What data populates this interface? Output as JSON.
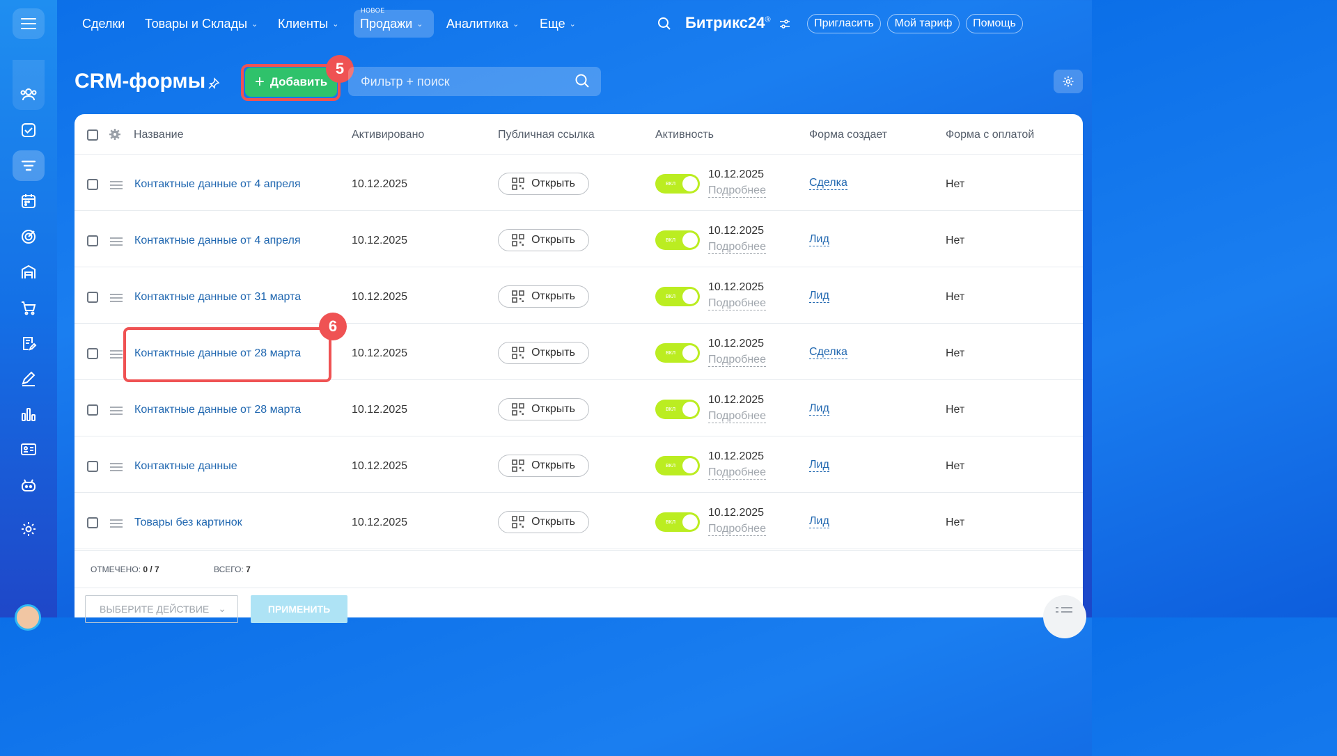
{
  "topnav": {
    "items": [
      {
        "label": "Сделки",
        "chevron": false
      },
      {
        "label": "Товары и Склады",
        "chevron": true
      },
      {
        "label": "Клиенты",
        "chevron": true
      },
      {
        "label": "Продажи",
        "chevron": true,
        "active": true,
        "badge": "НОВОЕ"
      },
      {
        "label": "Аналитика",
        "chevron": true
      },
      {
        "label": "Еще",
        "chevron": true
      }
    ],
    "brand": "Битрикс24",
    "brand_mark": "®",
    "invite": "Пригласить",
    "tariff": "Мой тариф",
    "help": "Помощь"
  },
  "header": {
    "title": "CRM-формы",
    "add_button": "Добавить",
    "filter_placeholder": "Фильтр + поиск"
  },
  "annotations": {
    "add_badge": "5",
    "row_badge": "6"
  },
  "table": {
    "columns": [
      "Название",
      "Активировано",
      "Публичная ссылка",
      "Активность",
      "Форма создает",
      "Форма с оплатой"
    ],
    "open_label": "Открыть",
    "toggle_label": "вкл",
    "more_label": "Подробнее",
    "rows": [
      {
        "name": "Контактные данные от 4 апреля",
        "activated": "10.12.2025",
        "activity_date": "10.12.2025",
        "creates": "Сделка",
        "payment": "Нет"
      },
      {
        "name": "Контактные данные от 4 апреля",
        "activated": "10.12.2025",
        "activity_date": "10.12.2025",
        "creates": "Лид",
        "payment": "Нет"
      },
      {
        "name": "Контактные данные от 31 марта",
        "activated": "10.12.2025",
        "activity_date": "10.12.2025",
        "creates": "Лид",
        "payment": "Нет"
      },
      {
        "name": "Контактные данные от 28 марта",
        "activated": "10.12.2025",
        "activity_date": "10.12.2025",
        "creates": "Сделка",
        "payment": "Нет"
      },
      {
        "name": "Контактные данные от 28 марта",
        "activated": "10.12.2025",
        "activity_date": "10.12.2025",
        "creates": "Лид",
        "payment": "Нет"
      },
      {
        "name": "Контактные данные",
        "activated": "10.12.2025",
        "activity_date": "10.12.2025",
        "creates": "Лид",
        "payment": "Нет"
      },
      {
        "name": "Товары без картинок",
        "activated": "10.12.2025",
        "activity_date": "10.12.2025",
        "creates": "Лид",
        "payment": "Нет"
      }
    ]
  },
  "footer": {
    "selected_label": "ОТМЕЧЕНО:",
    "selected_value": "0 / 7",
    "total_label": "ВСЕГО:",
    "total_value": "7",
    "action_select": "ВЫБЕРИТЕ ДЕЙСТВИЕ",
    "apply": "ПРИМЕНИТЬ"
  },
  "sidebar_icons": [
    "menu-icon",
    "contacts-icon",
    "tasks-icon",
    "funnel-icon",
    "calendar-icon",
    "target-icon",
    "warehouse-icon",
    "cart-icon",
    "document-edit-icon",
    "pen-icon",
    "analytics-icon",
    "id-card-icon",
    "robot-icon",
    "settings-icon"
  ],
  "colors": {
    "accent_green": "#2fc26b",
    "toggle_on": "#bbed21",
    "link_blue": "#2067b0",
    "highlight_red": "#ef5253"
  }
}
